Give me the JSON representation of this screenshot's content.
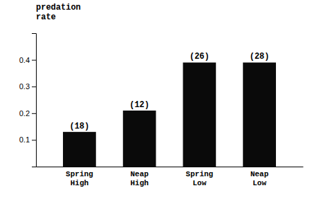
{
  "chart_data": {
    "type": "bar",
    "ylabel": "predation\nrate",
    "categories": [
      "Spring\nHigh",
      "Neap\nHigh",
      "Spring\nLow",
      "Neap\nLow"
    ],
    "values": [
      0.13,
      0.21,
      0.39,
      0.39
    ],
    "annotations": [
      "(18)",
      "(12)",
      "(26)",
      "(28)"
    ],
    "color": "#0a0a0a",
    "ylim": [
      0,
      0.5
    ],
    "yticks": [
      0.1,
      0.2,
      0.3,
      0.4
    ]
  }
}
